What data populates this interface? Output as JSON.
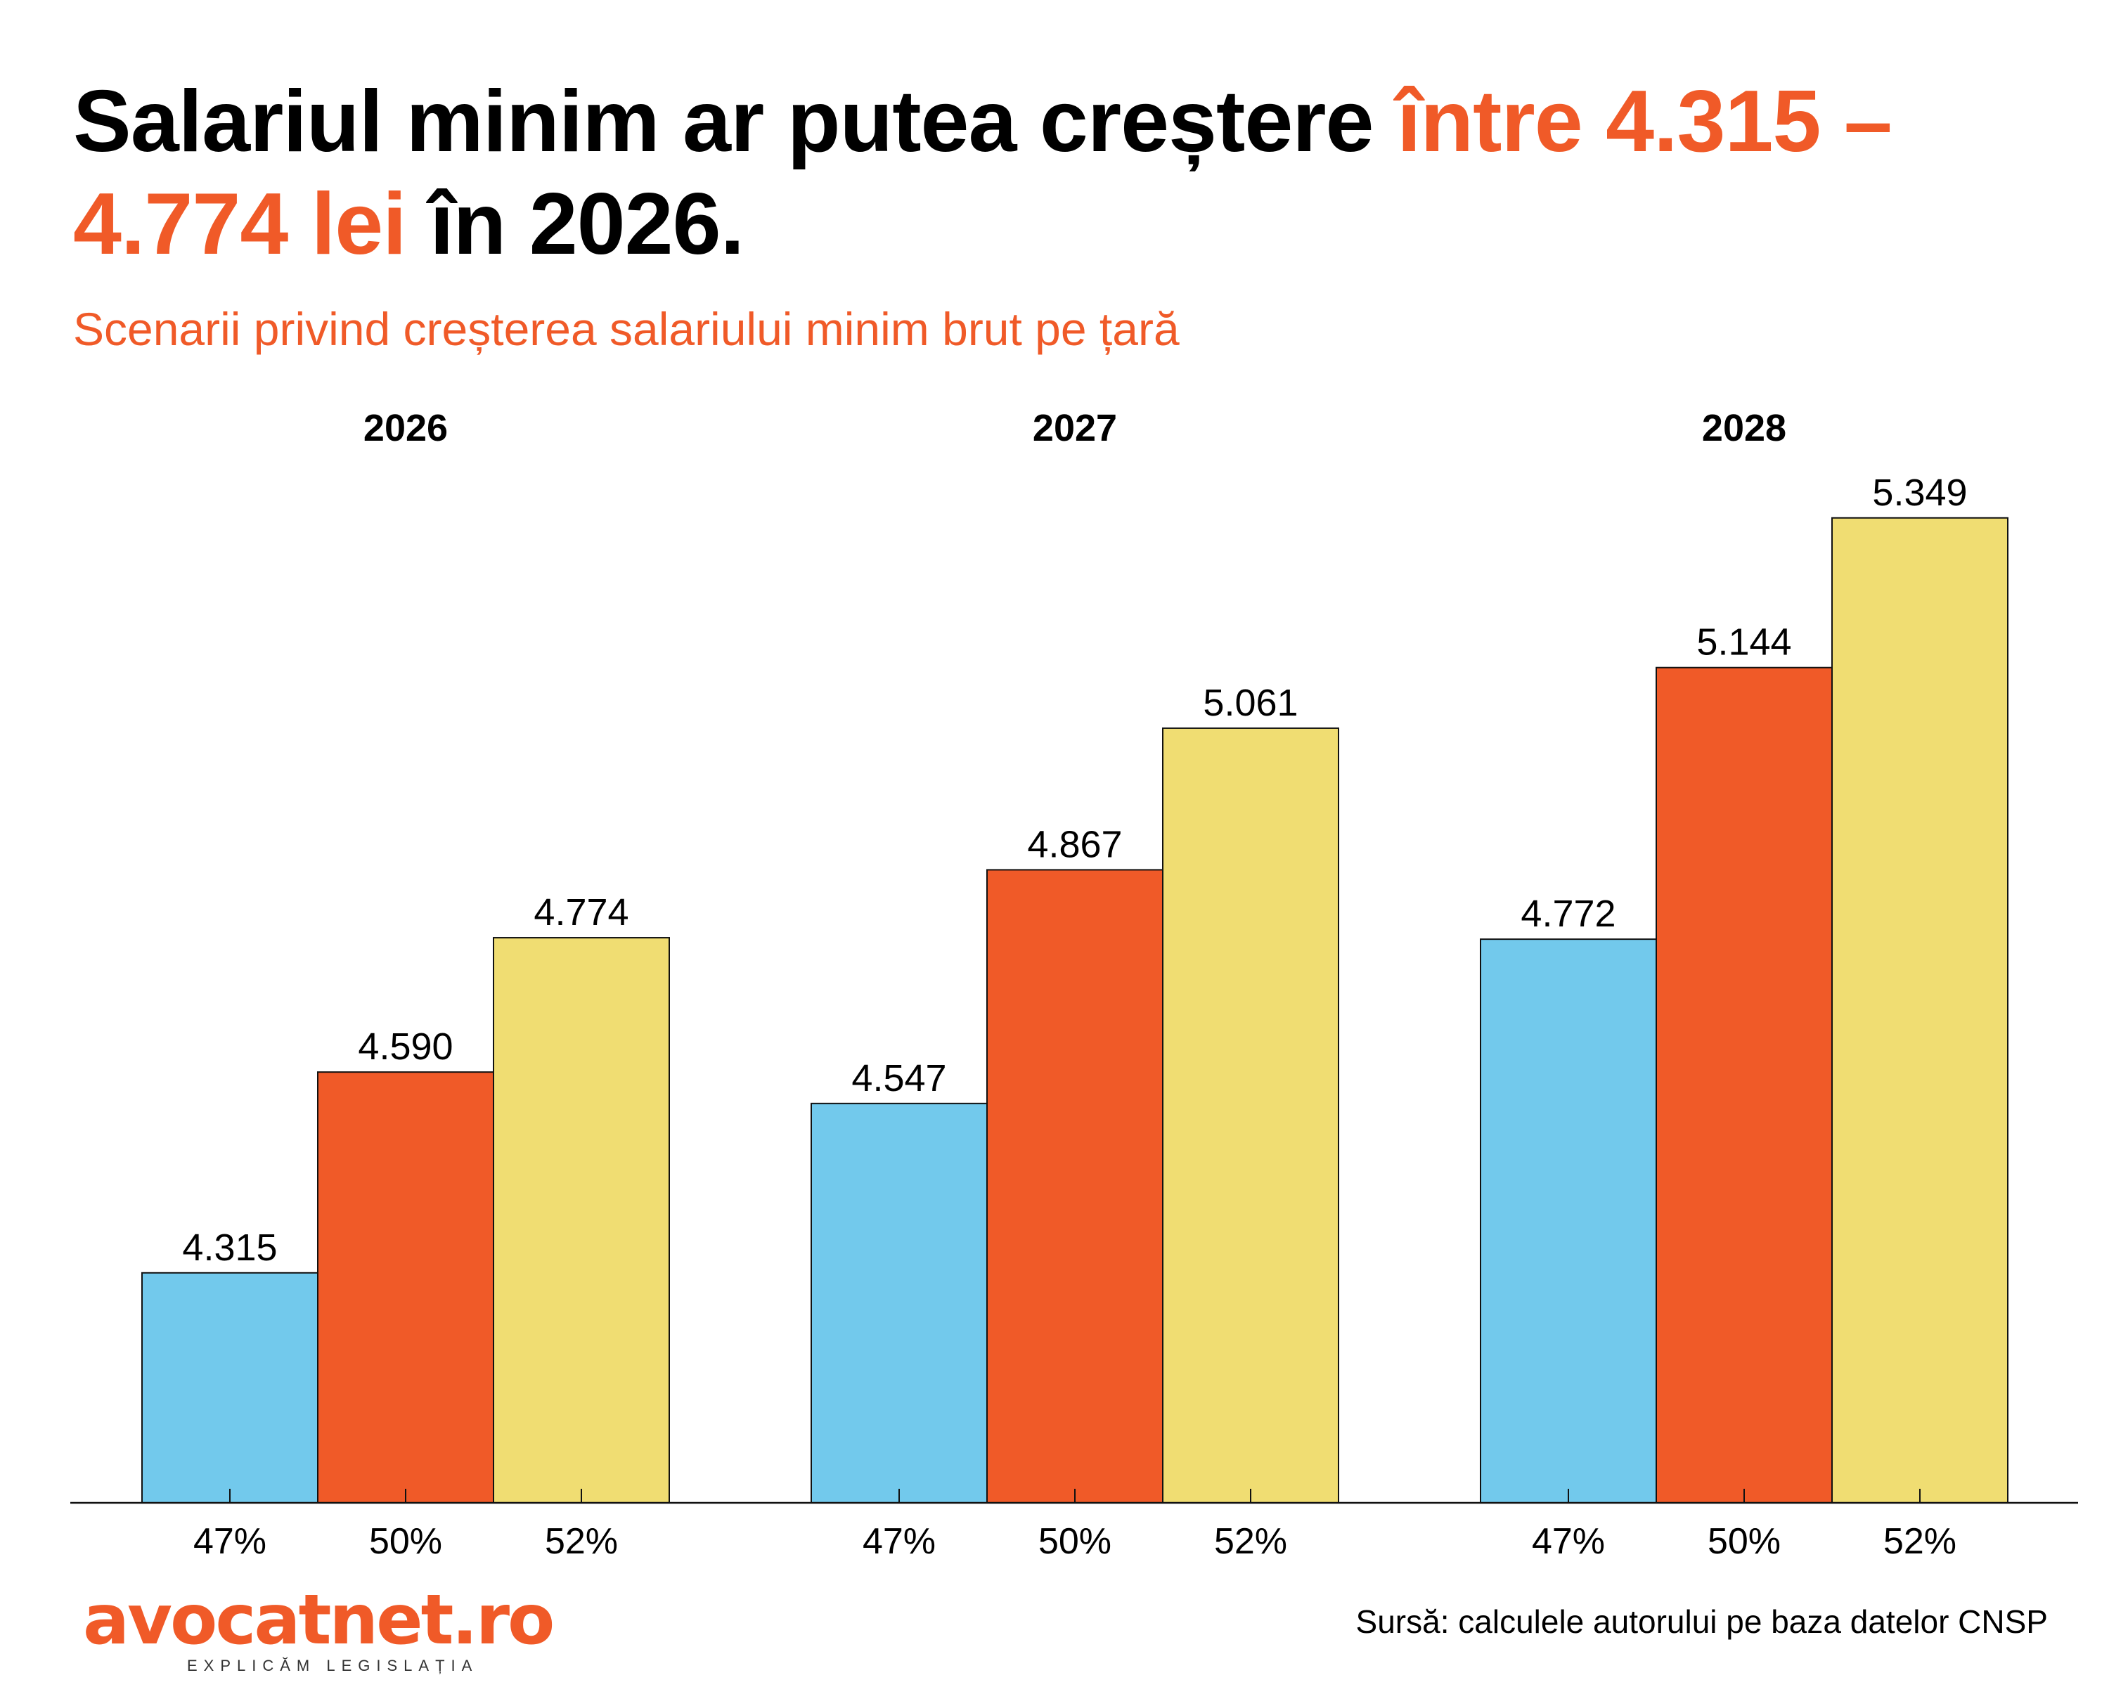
{
  "title": {
    "part1": "Salariul minim ar putea creștere ",
    "highlight": "între 4.315 – 4.774 lei",
    "part2": " în 2026."
  },
  "subtitle": "Scenarii privind creșterea salariului minim brut pe țară",
  "source": "Sursă: calculele autorului pe baza datelor CNSP",
  "logo": {
    "name": "avocatnet.ro",
    "tagline": "EXPLICĂM LEGISLAȚIA"
  },
  "chart_data": {
    "type": "bar",
    "groups": [
      "2026",
      "2027",
      "2028"
    ],
    "categories": [
      "47%",
      "50%",
      "52%"
    ],
    "series": [
      {
        "group": "2026",
        "values": [
          4315,
          4590,
          4774
        ],
        "labels": [
          "4.315",
          "4.590",
          "4.774"
        ]
      },
      {
        "group": "2027",
        "values": [
          4547,
          4867,
          5061
        ],
        "labels": [
          "4.547",
          "4.867",
          "5.061"
        ]
      },
      {
        "group": "2028",
        "values": [
          4772,
          5144,
          5349
        ],
        "labels": [
          "4.772",
          "5.144",
          "5.349"
        ]
      }
    ],
    "colors": [
      "#72C9EC",
      "#F05A28",
      "#F0DD72"
    ],
    "ylim": [
      4000,
      5349
    ],
    "grid": false
  }
}
